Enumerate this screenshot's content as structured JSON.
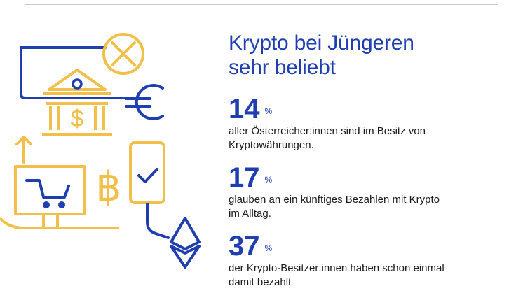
{
  "headline": {
    "line1": "Krypto bei Jüngeren",
    "line2": "sehr beliebt"
  },
  "stats": [
    {
      "value": "14",
      "unit": "%",
      "text_line1": "aller Österreicher:innen sind im Besitz von",
      "text_line2": "Kryptowährungen."
    },
    {
      "value": "17",
      "unit": "%",
      "text_line1": "glauben an ein künftiges Bezahlen mit Krypto",
      "text_line2": "im Alltag."
    },
    {
      "value": "37",
      "unit": "%",
      "text_line1": "der Krypto-Besitzer:innen haben schon einmal",
      "text_line2": "damit bezahlt"
    }
  ],
  "illustration": {
    "icons": [
      "globe-icon",
      "bank-building-icon",
      "dollar-sign-icon",
      "euro-sign-icon",
      "arrow-up-icon",
      "computer-monitor-icon",
      "shopping-cart-icon",
      "bitcoin-icon",
      "smartphone-icon",
      "checkmark-icon",
      "ethereum-icon"
    ],
    "colors": {
      "blue": "#1f3fb0",
      "gold": "#f2c04a"
    }
  }
}
